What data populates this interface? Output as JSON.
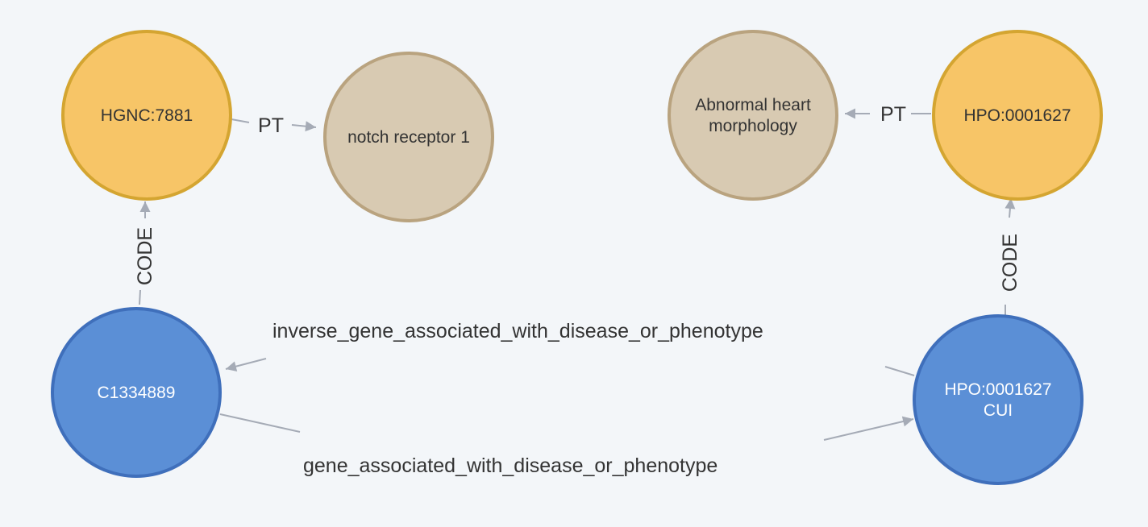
{
  "graph": {
    "nodes": [
      {
        "id": "hgnc",
        "lines": [
          "HGNC:7881"
        ],
        "kind": "code"
      },
      {
        "id": "notch",
        "lines": [
          "notch receptor 1"
        ],
        "kind": "term"
      },
      {
        "id": "abnormal",
        "lines": [
          "Abnormal heart",
          "morphology"
        ],
        "kind": "term"
      },
      {
        "id": "hpo_code",
        "lines": [
          "HPO:0001627"
        ],
        "kind": "code"
      },
      {
        "id": "c1334889",
        "lines": [
          "C1334889"
        ],
        "kind": "concept"
      },
      {
        "id": "hpo_cui",
        "lines": [
          "HPO:0001627",
          "CUI"
        ],
        "kind": "concept"
      }
    ],
    "relationships": [
      {
        "id": "pt-hgnc-notch",
        "type": "PT",
        "from": "hgnc",
        "to": "notch"
      },
      {
        "id": "pt-hpo-abnormal",
        "type": "PT",
        "from": "hpo_code",
        "to": "abnormal"
      },
      {
        "id": "code-c1334889-hgnc",
        "type": "CODE",
        "from": "c1334889",
        "to": "hgnc"
      },
      {
        "id": "code-cui-hpo",
        "type": "CODE",
        "from": "hpo_cui",
        "to": "hpo_code"
      },
      {
        "id": "inverse-assoc",
        "type": "inverse_gene_associated_with_disease_or_phenotype",
        "from": "hpo_cui",
        "to": "c1334889"
      },
      {
        "id": "gene-assoc",
        "type": "gene_associated_with_disease_or_phenotype",
        "from": "c1334889",
        "to": "hpo_cui"
      }
    ],
    "colors": {
      "code_fill": "#f7c567",
      "code_stroke": "#d4a531",
      "code_text": "#333333",
      "term_fill": "#d8cab2",
      "term_stroke": "#b9a37f",
      "term_text": "#333333",
      "concept_fill": "#5b8fd6",
      "concept_stroke": "#3f6fbb",
      "concept_text": "#ffffff",
      "edge": "#a5abb6"
    }
  }
}
